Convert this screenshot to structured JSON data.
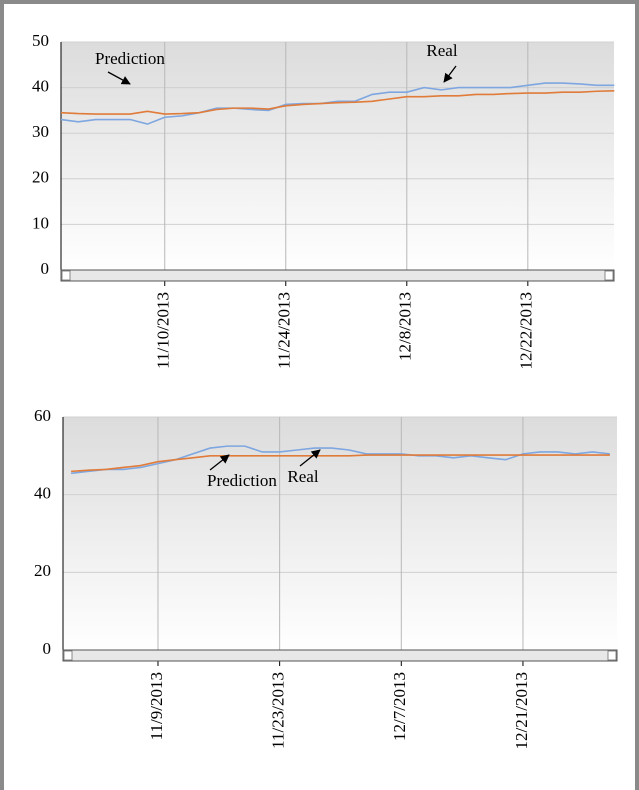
{
  "chart_data": [
    {
      "type": "line",
      "categories": [
        null,
        null,
        null,
        null,
        null,
        null,
        "11/10/2013",
        null,
        null,
        null,
        null,
        null,
        null,
        "11/24/2013",
        null,
        null,
        null,
        null,
        null,
        null,
        "12/8/2013",
        null,
        null,
        null,
        null,
        null,
        null,
        "12/22/2013",
        null,
        null,
        null,
        null,
        null
      ],
      "series": [
        {
          "name": "Real",
          "color": "#7ea6e0",
          "values": [
            33,
            32.5,
            33,
            33,
            33,
            32,
            33.5,
            33.8,
            34.5,
            35.5,
            35.5,
            35.2,
            35,
            36.3,
            36.5,
            36.5,
            37,
            37,
            38.5,
            39,
            39,
            40,
            39.5,
            40,
            40,
            40,
            40,
            40.5,
            41,
            41,
            40.8,
            40.5,
            40.5
          ]
        },
        {
          "name": "Prediction",
          "color": "#e07b39",
          "values": [
            34.5,
            34.3,
            34.2,
            34.2,
            34.2,
            34.8,
            34.2,
            34.3,
            34.5,
            35.2,
            35.5,
            35.5,
            35.3,
            36,
            36.3,
            36.5,
            36.7,
            36.8,
            37,
            37.5,
            38,
            38,
            38.2,
            38.2,
            38.5,
            38.5,
            38.7,
            38.8,
            38.8,
            39,
            39,
            39.2,
            39.3
          ]
        }
      ],
      "ylim": [
        0,
        50
      ],
      "yticks": [
        0,
        10,
        20,
        30,
        40,
        50
      ],
      "grid": true,
      "annotations": [
        "Prediction",
        "Real"
      ]
    },
    {
      "type": "line",
      "categories": [
        null,
        null,
        null,
        null,
        null,
        null,
        "11/9/2013",
        null,
        null,
        null,
        null,
        null,
        null,
        "11/23/2013",
        null,
        null,
        null,
        null,
        null,
        null,
        "12/7/2013",
        null,
        null,
        null,
        null,
        null,
        null,
        "12/21/2013",
        null,
        null,
        null,
        null,
        null
      ],
      "series": [
        {
          "name": "Real",
          "color": "#7ea6e0",
          "values": [
            null,
            45.5,
            46,
            46.5,
            46.5,
            47,
            48,
            49,
            50.5,
            52,
            52.5,
            52.5,
            51,
            51,
            51.5,
            52,
            52,
            51.5,
            50.5,
            50.5,
            50.5,
            50,
            50,
            49.5,
            50,
            49.5,
            49,
            50.5,
            51,
            51,
            50.5,
            51,
            50.5
          ]
        },
        {
          "name": "Prediction",
          "color": "#e07b39",
          "values": [
            null,
            46,
            46.3,
            46.5,
            47,
            47.5,
            48.5,
            49,
            49.5,
            50,
            50,
            50,
            50,
            50,
            50,
            50,
            50,
            50,
            50.2,
            50.2,
            50.2,
            50.2,
            50.2,
            50.2,
            50.2,
            50.2,
            50.2,
            50.2,
            50.2,
            50.2,
            50.2,
            50.2,
            50.2
          ]
        }
      ],
      "ylim": [
        0,
        60
      ],
      "yticks": [
        0,
        20,
        40,
        60
      ],
      "grid": true,
      "annotations": [
        "Prediction",
        "Real"
      ]
    }
  ]
}
